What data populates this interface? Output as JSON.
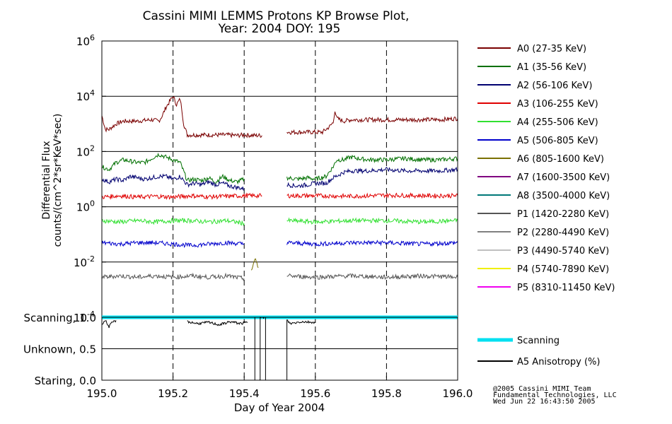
{
  "chart_data": {
    "type": "line",
    "title_line1": "Cassini MIMI LEMMS Protons KP Browse Plot,",
    "title_line2": "Year: 2004 DOY: 195",
    "xlabel": "Day of Year 2004",
    "ylabel_line1": "Differential Flux",
    "ylabel_line2": "counts/(cm^2*sr*KeV*sec)",
    "xlim": [
      195.0,
      196.0
    ],
    "ylim_log10": [
      -4,
      6
    ],
    "y_scale": "log",
    "x_ticks": [
      "195.0",
      "195.2",
      "195.4",
      "195.6",
      "195.8",
      "196.0"
    ],
    "y_ticks": [
      {
        "base": "10",
        "exp": "-4",
        "log10": -4
      },
      {
        "base": "10",
        "exp": "-2",
        "log10": -2
      },
      {
        "base": "10",
        "exp": "0",
        "log10": 0
      },
      {
        "base": "10",
        "exp": "2",
        "log10": 2
      },
      {
        "base": "10",
        "exp": "4",
        "log10": 4
      },
      {
        "base": "10",
        "exp": "6",
        "log10": 6
      }
    ],
    "gap": [
      195.455,
      195.52
    ],
    "series": [
      {
        "name": "A0 (27-35 KeV)",
        "color": "#7a0000",
        "segments": [
          {
            "x": [
              195.0,
              195.01,
              195.02,
              195.04,
              195.06,
              195.1,
              195.14,
              195.16,
              195.17,
              195.18,
              195.19,
              195.2,
              195.21,
              195.22,
              195.225,
              195.23,
              195.24,
              195.26,
              195.3,
              195.35,
              195.38,
              195.4,
              195.43,
              195.45
            ],
            "y": [
              3.3,
              2.8,
              2.8,
              3.0,
              3.1,
              3.1,
              3.15,
              3.1,
              3.3,
              3.6,
              3.8,
              4.0,
              3.7,
              3.9,
              3.5,
              3.0,
              2.6,
              2.6,
              2.6,
              2.6,
              2.58,
              2.6,
              2.58,
              2.58
            ]
          },
          {
            "x": [
              195.52,
              195.56,
              195.6,
              195.62,
              195.63,
              195.64,
              195.65,
              195.655,
              195.66,
              195.68,
              195.7,
              195.75,
              195.8,
              195.85,
              195.9,
              195.95,
              196.0
            ],
            "y": [
              2.7,
              2.7,
              2.7,
              2.7,
              2.8,
              2.9,
              3.05,
              3.5,
              3.2,
              3.1,
              3.15,
              3.15,
              3.15,
              3.15,
              3.15,
              3.15,
              3.2
            ]
          }
        ]
      },
      {
        "name": "A1 (35-56 KeV)",
        "color": "#007000",
        "segments": [
          {
            "x": [
              195.0,
              195.02,
              195.04,
              195.06,
              195.08,
              195.1,
              195.12,
              195.14,
              195.16,
              195.18,
              195.2,
              195.22,
              195.24,
              195.26,
              195.28,
              195.3,
              195.32,
              195.34,
              195.36,
              195.38,
              195.4
            ],
            "y": [
              1.45,
              1.35,
              1.6,
              1.7,
              1.65,
              1.6,
              1.6,
              1.75,
              1.9,
              1.8,
              1.7,
              1.6,
              0.95,
              1.0,
              0.95,
              1.05,
              0.9,
              1.1,
              0.95,
              0.9,
              1.0
            ]
          },
          {
            "x": [
              195.52,
              195.55,
              195.58,
              195.6,
              195.63,
              195.65,
              195.66,
              195.68,
              195.7,
              195.72,
              195.75,
              195.8,
              195.85,
              195.9,
              195.95,
              196.0
            ],
            "y": [
              1.05,
              1.0,
              1.05,
              1.0,
              1.1,
              1.45,
              1.7,
              1.7,
              1.8,
              1.75,
              1.7,
              1.7,
              1.75,
              1.7,
              1.7,
              1.75
            ]
          }
        ]
      },
      {
        "name": "A2 (56-106 KeV)",
        "color": "#000070",
        "segments": [
          {
            "x": [
              195.0,
              195.02,
              195.04,
              195.06,
              195.08,
              195.1,
              195.12,
              195.14,
              195.16,
              195.18,
              195.2,
              195.22,
              195.24,
              195.26,
              195.28,
              195.3,
              195.32,
              195.34,
              195.36,
              195.38,
              195.4
            ],
            "y": [
              1.0,
              0.9,
              1.0,
              0.95,
              1.1,
              1.05,
              1.0,
              1.05,
              1.1,
              1.1,
              1.0,
              1.1,
              0.8,
              0.85,
              0.8,
              0.9,
              0.8,
              0.85,
              0.75,
              0.7,
              0.65
            ]
          },
          {
            "x": [
              195.52,
              195.55,
              195.58,
              195.6,
              195.63,
              195.65,
              195.68,
              195.7,
              195.75,
              195.8,
              195.85,
              195.9,
              195.95,
              196.0
            ],
            "y": [
              0.8,
              0.75,
              0.8,
              0.85,
              0.85,
              1.05,
              1.25,
              1.3,
              1.3,
              1.35,
              1.3,
              1.3,
              1.3,
              1.35
            ]
          }
        ]
      },
      {
        "name": "A3 (106-255 KeV)",
        "color": "#e00000",
        "segments": [
          {
            "x": [
              195.0,
              195.05,
              195.1,
              195.15,
              195.2,
              195.25,
              195.3,
              195.35,
              195.4,
              195.45
            ],
            "y": [
              0.35,
              0.4,
              0.35,
              0.38,
              0.35,
              0.4,
              0.36,
              0.38,
              0.4,
              0.4
            ]
          },
          {
            "x": [
              195.52,
              195.6,
              195.7,
              195.8,
              195.9,
              196.0
            ],
            "y": [
              0.4,
              0.4,
              0.38,
              0.42,
              0.4,
              0.4
            ]
          }
        ]
      },
      {
        "name": "A4 (255-506 KeV)",
        "color": "#30e030",
        "segments": [
          {
            "x": [
              195.0,
              195.05,
              195.1,
              195.15,
              195.2,
              195.25,
              195.3,
              195.35,
              195.4
            ],
            "y": [
              -0.5,
              -0.55,
              -0.5,
              -0.55,
              -0.5,
              -0.5,
              -0.55,
              -0.5,
              -0.6
            ]
          },
          {
            "x": [
              195.52,
              195.6,
              195.7,
              195.8,
              195.9,
              196.0
            ],
            "y": [
              -0.5,
              -0.55,
              -0.5,
              -0.5,
              -0.55,
              -0.5
            ]
          }
        ]
      },
      {
        "name": "A5 (506-805 KeV)",
        "color": "#0000cc",
        "segments": [
          {
            "x": [
              195.0,
              195.05,
              195.1,
              195.15,
              195.2,
              195.25,
              195.3,
              195.35,
              195.4
            ],
            "y": [
              -1.3,
              -1.35,
              -1.3,
              -1.3,
              -1.35,
              -1.4,
              -1.35,
              -1.3,
              -1.35
            ]
          },
          {
            "x": [
              195.52,
              195.6,
              195.7,
              195.8,
              195.9,
              196.0
            ],
            "y": [
              -1.3,
              -1.35,
              -1.3,
              -1.3,
              -1.35,
              -1.3
            ]
          }
        ]
      },
      {
        "name": "A6 (805-1600 KeV)",
        "color": "#7a7000",
        "segments": [
          {
            "x": [
              195.42,
              195.43,
              195.44
            ],
            "y": [
              -2.3,
              -1.9,
              -2.2
            ]
          }
        ]
      },
      {
        "name": "A7 (1600-3500 KeV)",
        "color": "#800080",
        "segments": []
      },
      {
        "name": "A8 (3500-4000 KeV)",
        "color": "#007878",
        "segments": []
      },
      {
        "name": "P1 (1420-2280 KeV)",
        "color": "#555555",
        "segments": [
          {
            "x": [
              195.0,
              195.05,
              195.1,
              195.15,
              195.2,
              195.25,
              195.3,
              195.35,
              195.4
            ],
            "y": [
              -2.55,
              -2.5,
              -2.55,
              -2.5,
              -2.55,
              -2.5,
              -2.55,
              -2.5,
              -2.6
            ]
          },
          {
            "x": [
              195.52,
              195.6,
              195.7,
              195.8,
              195.9,
              196.0
            ],
            "y": [
              -2.5,
              -2.55,
              -2.5,
              -2.55,
              -2.5,
              -2.55
            ]
          }
        ]
      },
      {
        "name": "P2 (2280-4490 KeV)",
        "color": "#808080",
        "segments": []
      },
      {
        "name": "P3 (4490-5740 KeV)",
        "color": "#c0c0c0",
        "segments": []
      },
      {
        "name": "P4 (5740-7890 KeV)",
        "color": "#f0f000",
        "segments": []
      },
      {
        "name": "P5 (8310-11450 KeV)",
        "color": "#f000f0",
        "segments": []
      }
    ],
    "lower_panel": {
      "y_ticks": [
        "Scanning, 1.0",
        "Unknown, 0.5",
        "Staring, 0.0"
      ],
      "series": [
        {
          "name": "Scanning",
          "color": "#00e0f0",
          "x": [
            195.0,
            196.0
          ],
          "y": [
            1.0,
            1.0
          ]
        },
        {
          "name": "A5 Anisotropy (%)",
          "color": "#000000",
          "segments": [
            {
              "x": [
                195.0,
                195.01,
                195.02,
                195.03,
                195.04
              ],
              "y": [
                0.9,
                0.95,
                0.85,
                0.92,
                0.95
              ]
            },
            {
              "x": [
                195.24,
                195.27,
                195.3,
                195.33,
                195.36,
                195.39,
                195.41
              ],
              "y": [
                0.93,
                0.9,
                0.92,
                0.88,
                0.93,
                0.9,
                0.92
              ]
            },
            {
              "x": [
                195.43,
                195.43,
                195.445,
                195.445,
                195.46,
                195.46
              ],
              "y": [
                1.0,
                0.0,
                0.0,
                1.0,
                1.0,
                0.0
              ]
            },
            {
              "x": [
                195.52,
                195.52,
                195.53,
                195.56,
                195.6
              ],
              "y": [
                0.0,
                0.95,
                0.9,
                0.93,
                0.92
              ]
            }
          ]
        }
      ]
    },
    "credit_lines": [
      "@2005 Cassini MIMI Team",
      "Fundamental Technologies, LLC",
      "Wed Jun 22 16:43:50 2005"
    ]
  }
}
